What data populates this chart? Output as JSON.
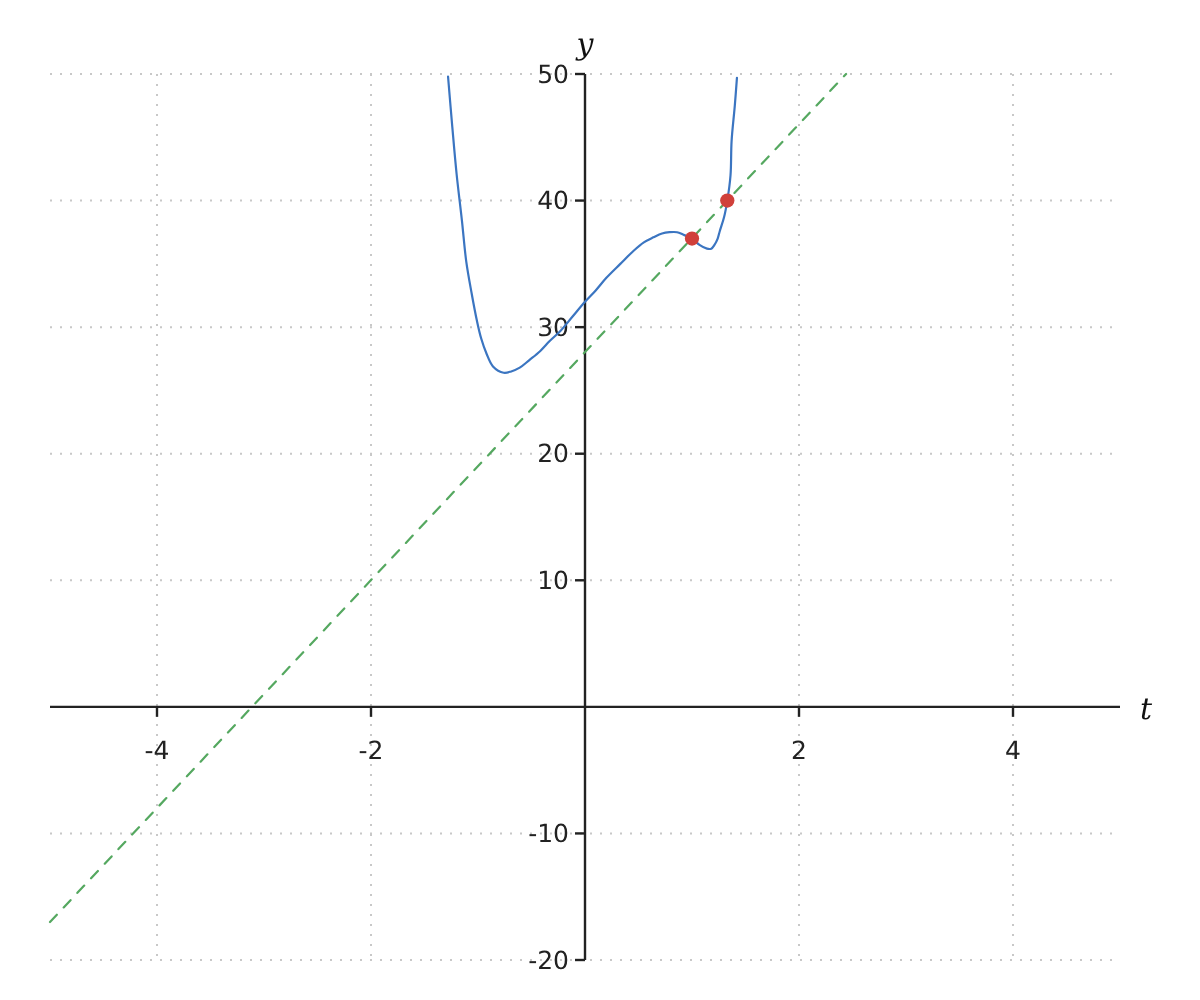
{
  "chart_data": {
    "type": "line",
    "xlabel": "t",
    "ylabel": "y",
    "xlim": [
      -5,
      5
    ],
    "ylim": [
      -20,
      50
    ],
    "xticks": [
      -4,
      -2,
      2,
      4
    ],
    "yticks": [
      -20,
      -10,
      10,
      20,
      30,
      40,
      50
    ],
    "grid": true,
    "series": [
      {
        "color": "#3b75c1",
        "line_style": "solid",
        "x": [
          -1.28,
          -1.24,
          -1.2,
          -1.15,
          -1.11,
          -1.06,
          -1.01,
          -0.97,
          -0.92,
          -0.86,
          -0.76,
          -0.69,
          -0.61,
          -0.52,
          -0.42,
          -0.33,
          -0.23,
          -0.12,
          0,
          0.1,
          0.2,
          0.33,
          0.45,
          0.55,
          0.64,
          0.72,
          0.79,
          0.86,
          0.92,
          1.0,
          1.07,
          1.14,
          1.18,
          1.21,
          1.24,
          1.26,
          1.3,
          1.33,
          1.36,
          1.37,
          1.4,
          1.42
        ],
        "values": [
          49.8,
          45.8,
          42.1,
          38.4,
          35.2,
          32.7,
          30.5,
          29.1,
          27.9,
          26.9,
          26.4,
          26.5,
          26.8,
          27.4,
          28.1,
          28.9,
          29.7,
          30.8,
          32.0,
          32.9,
          33.9,
          35.0,
          36.0,
          36.7,
          37.1,
          37.4,
          37.5,
          37.5,
          37.3,
          37.0,
          36.5,
          36.2,
          36.2,
          36.5,
          37.0,
          37.6,
          38.7,
          40.0,
          42.0,
          44.7,
          47.5,
          49.7
        ]
      },
      {
        "color": "#55a860",
        "line_style": "dashed",
        "x": [
          -5,
          2.44
        ],
        "values": [
          -17,
          50
        ]
      },
      {
        "type": "scatter",
        "color": "#d0403a",
        "marker": "circle",
        "x": [
          1,
          1.33
        ],
        "values": [
          37,
          40
        ]
      }
    ]
  }
}
